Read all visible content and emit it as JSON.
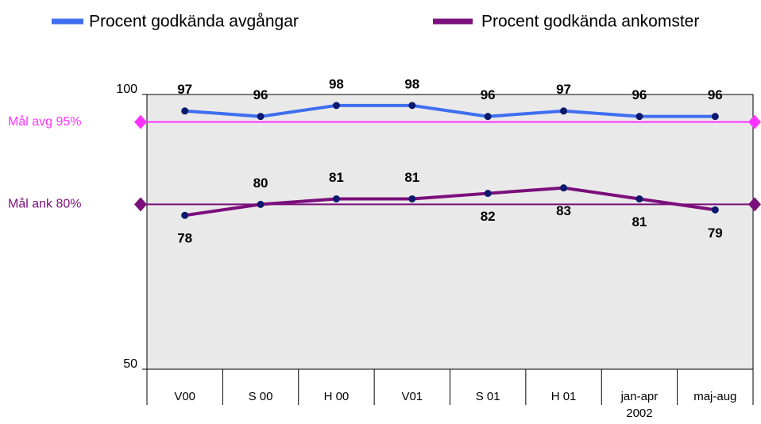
{
  "chart_data": {
    "type": "line",
    "categories": [
      "V00",
      "S 00",
      "H 00",
      "V01",
      "S 01",
      "H 01",
      "jan-apr\n2002",
      "maj-aug"
    ],
    "series": [
      {
        "name": "Procent godkända avgångar",
        "color": "#3f6ff0",
        "values": [
          97,
          96,
          98,
          98,
          96,
          97,
          96,
          96
        ]
      },
      {
        "name": "Procent godkända ankomster",
        "color": "#7b0f7b",
        "values": [
          78,
          80,
          81,
          81,
          82,
          83,
          81,
          79
        ]
      }
    ],
    "target_lines": [
      {
        "label": "Mål avg 95%",
        "value": 95,
        "color": "#ff33ff"
      },
      {
        "label": "Mål ank 80%",
        "value": 80,
        "color": "#7b0f7b"
      }
    ],
    "ylim": [
      50,
      100
    ],
    "yticks": [
      50,
      100
    ],
    "grid": false,
    "legend": "top",
    "plot_background": "#e9e9e9",
    "point_color": "#0b1a6e"
  }
}
